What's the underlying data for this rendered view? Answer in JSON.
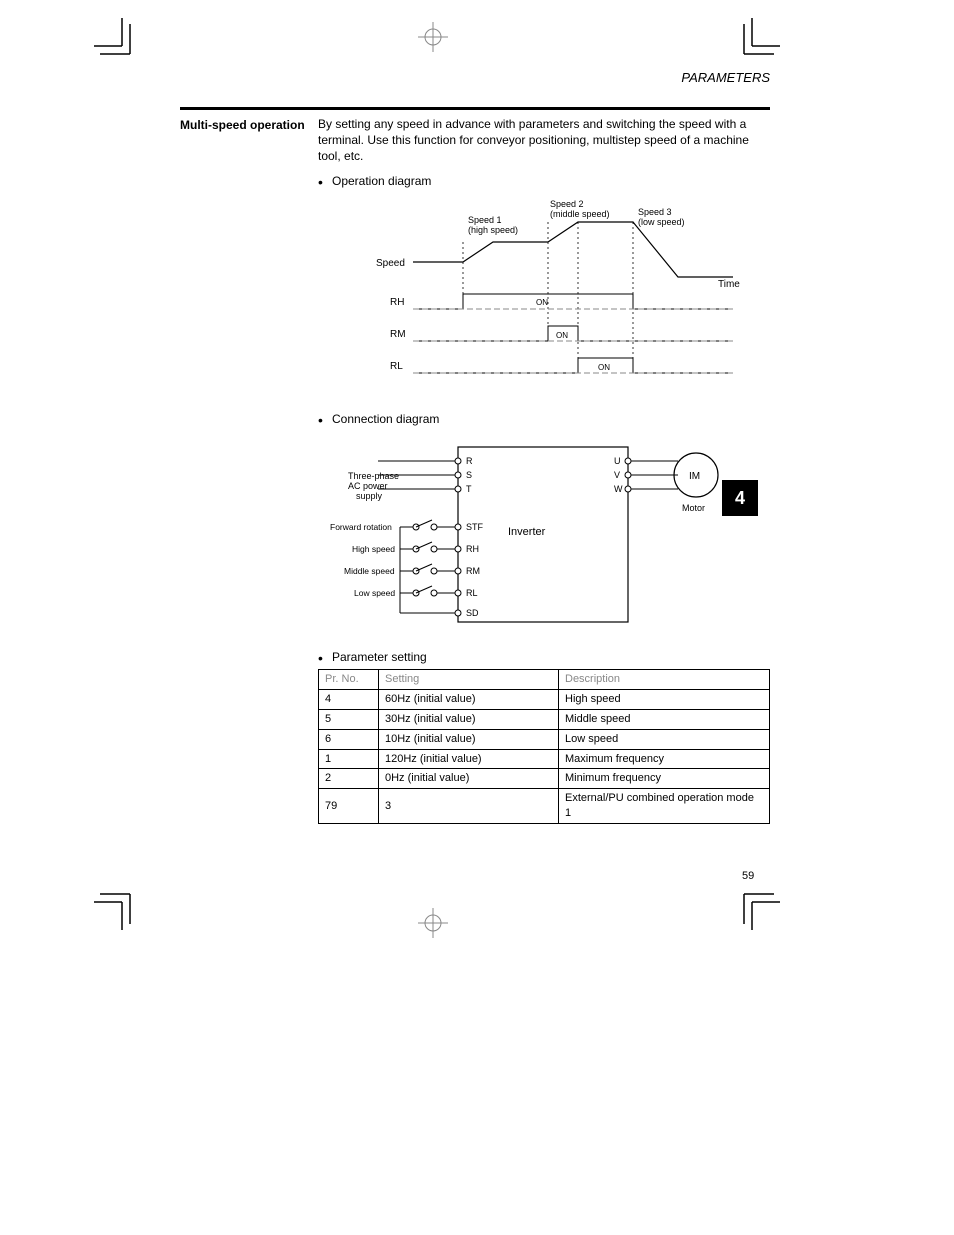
{
  "header": "PARAMETERS",
  "section_label": "Multi-speed operation",
  "body": {
    "p1": "By setting any speed in advance with parameters and switching the speed with a terminal. Use this function for conveyor positioning, multistep speed of a machine tool, etc.",
    "b1_label": "Operation diagram",
    "b2_label": "Connection diagram",
    "b3_label": "Parameter setting"
  },
  "op_diagram": {
    "rows": [
      "Speed",
      "RH",
      "RM",
      "RL"
    ],
    "speeds": [
      "Speed 1\n(high speed)",
      "Speed 2\n(middle speed)",
      "Speed 3\n(low speed)"
    ],
    "time_label": "Time"
  },
  "conn_diagram": {
    "left_rail": [
      "R",
      "S",
      "T"
    ],
    "right_rail": [
      "U",
      "V",
      "W"
    ],
    "motor": "IM",
    "unit_label": "Inverter",
    "switches": [
      {
        "label_left": "Forward rotation",
        "label_right": "STF"
      },
      {
        "label_left": "High speed",
        "label_right": "RH"
      },
      {
        "label_left": "Middle speed",
        "label_right": "RM"
      },
      {
        "label_left": "Low speed",
        "label_right": "RL"
      }
    ],
    "common": "SD"
  },
  "param_table": {
    "headers": [
      "Pr. No.",
      "Setting",
      "Description"
    ],
    "rows": [
      [
        "4",
        "60Hz (initial value)",
        "High speed"
      ],
      [
        "5",
        "30Hz (initial value)",
        "Middle speed"
      ],
      [
        "6",
        "10Hz (initial value)",
        "Low speed"
      ],
      [
        "1",
        "120Hz (initial value)",
        "Maximum frequency"
      ],
      [
        "2",
        "0Hz (initial value)",
        "Minimum frequency"
      ],
      [
        "79",
        "3",
        "External/PU combined operation mode 1"
      ]
    ]
  },
  "side_tab": "4",
  "page_number": "59",
  "colors": {
    "text": "#000000",
    "faint": "#999999",
    "bg": "#ffffff"
  }
}
